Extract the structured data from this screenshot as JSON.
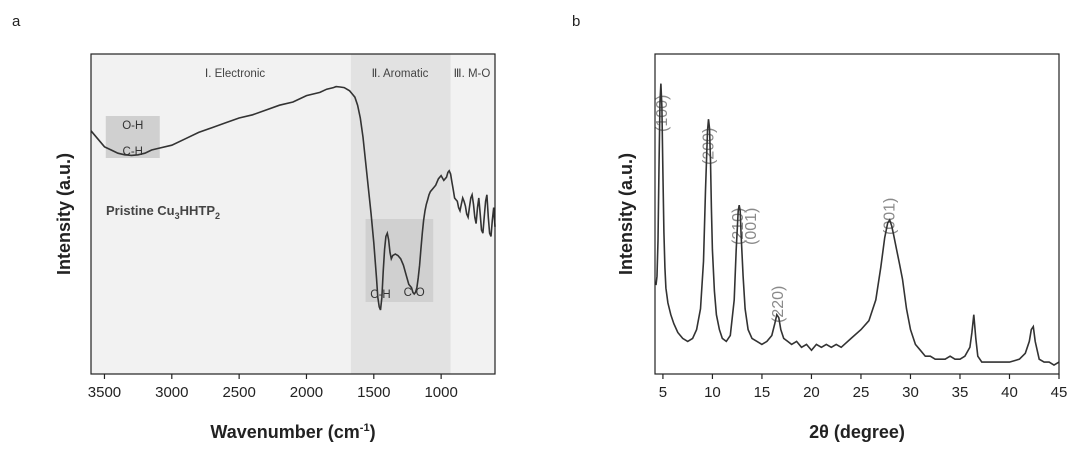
{
  "panels": {
    "a": "a",
    "b": "b"
  },
  "chart_data": [
    {
      "type": "line",
      "panel": "a",
      "xlabel": "Wavenumber (cm",
      "xlabel_sup": "-1",
      "xlabel_end": ")",
      "ylabel": "Intensity (a.u.)",
      "xlim": [
        3600,
        600
      ],
      "reversed_x": true,
      "y_ticks_shown": false,
      "x_ticks": [
        3500,
        3000,
        2500,
        2000,
        1500,
        1000
      ],
      "background_color": "#f2f2f2",
      "region_color": "#e2e2e2",
      "box_color": "#d0d0d0",
      "line_color": "#333333",
      "regions": [
        {
          "label": "Ⅰ. Electronic",
          "from": 3600,
          "to": 1670
        },
        {
          "label": "Ⅱ. Aromatic",
          "from": 1670,
          "to": 930
        },
        {
          "label": "Ⅲ. M-O",
          "from": 930,
          "to": 600
        }
      ],
      "band_labels": [
        {
          "label": "O-H",
          "x": 3290
        },
        {
          "label": "C-H",
          "x": 3290
        },
        {
          "label": "C-H",
          "x": 1450
        },
        {
          "label": "C-O",
          "x": 1200
        }
      ],
      "sample_label": {
        "text": "Pristine Cu",
        "sub1": "3",
        "mid": "HHTP",
        "sub2": "2"
      },
      "series": [
        {
          "x": [
            3600,
            3500,
            3450,
            3400,
            3350,
            3300,
            3250,
            3200,
            3150,
            3100,
            3000,
            2900,
            2800,
            2700,
            2600,
            2500,
            2400,
            2300,
            2200,
            2100,
            2000,
            1900,
            1850,
            1800,
            1780,
            1750,
            1720,
            1700,
            1680,
            1660,
            1640,
            1620,
            1600,
            1580,
            1560,
            1540,
            1520,
            1500,
            1480,
            1470,
            1460,
            1450,
            1440,
            1430,
            1420,
            1410,
            1400,
            1390,
            1380,
            1370,
            1360,
            1340,
            1320,
            1300,
            1280,
            1260,
            1240,
            1220,
            1210,
            1200,
            1190,
            1180,
            1170,
            1160,
            1150,
            1140,
            1130,
            1120,
            1110,
            1100,
            1090,
            1080,
            1060,
            1040,
            1020,
            1000,
            980,
            960,
            950,
            940,
            930,
            920,
            910,
            900,
            890,
            880,
            870,
            860,
            850,
            840,
            830,
            820,
            810,
            800,
            790,
            780,
            770,
            760,
            750,
            740,
            730,
            720,
            710,
            700,
            690,
            680,
            670,
            660,
            650,
            640,
            630,
            620,
            610,
            600
          ],
          "y": [
            0.76,
            0.71,
            0.7,
            0.69,
            0.685,
            0.683,
            0.685,
            0.69,
            0.7,
            0.705,
            0.715,
            0.735,
            0.755,
            0.77,
            0.785,
            0.8,
            0.81,
            0.825,
            0.84,
            0.85,
            0.87,
            0.88,
            0.89,
            0.895,
            0.898,
            0.897,
            0.895,
            0.89,
            0.885,
            0.875,
            0.865,
            0.84,
            0.8,
            0.74,
            0.66,
            0.58,
            0.5,
            0.41,
            0.3,
            0.24,
            0.21,
            0.2,
            0.24,
            0.32,
            0.39,
            0.43,
            0.44,
            0.42,
            0.38,
            0.36,
            0.37,
            0.375,
            0.37,
            0.36,
            0.34,
            0.31,
            0.28,
            0.27,
            0.255,
            0.25,
            0.255,
            0.27,
            0.3,
            0.34,
            0.39,
            0.44,
            0.48,
            0.51,
            0.53,
            0.545,
            0.56,
            0.57,
            0.58,
            0.59,
            0.61,
            0.62,
            0.605,
            0.615,
            0.63,
            0.635,
            0.625,
            0.6,
            0.575,
            0.55,
            0.545,
            0.54,
            0.52,
            0.51,
            0.53,
            0.55,
            0.54,
            0.525,
            0.5,
            0.49,
            0.52,
            0.55,
            0.56,
            0.53,
            0.49,
            0.47,
            0.52,
            0.55,
            0.5,
            0.45,
            0.44,
            0.49,
            0.54,
            0.56,
            0.49,
            0.44,
            0.43,
            0.48,
            0.52,
            0.46
          ],
          "ylim": [
            0,
            1
          ]
        }
      ]
    },
    {
      "type": "line",
      "panel": "b",
      "xlabel": "2θ (degree)",
      "ylabel": "Intensity (a.u.)",
      "xlim": [
        4.2,
        45
      ],
      "y_ticks_shown": false,
      "x_ticks": [
        5,
        10,
        15,
        20,
        25,
        30,
        35,
        40,
        45
      ],
      "line_color": "#333333",
      "peak_label_color": "#8a8a8a",
      "peak_labels": [
        {
          "label": "(100)",
          "x": 4.9
        },
        {
          "label": "(200)",
          "x": 9.6
        },
        {
          "label": "(210)",
          "x": 12.6
        },
        {
          "label": "(001)",
          "x": 13.9
        },
        {
          "label": "(220)",
          "x": 16.6
        },
        {
          "label": "(001)",
          "x": 27.9
        }
      ],
      "series": [
        {
          "x": [
            4.3,
            4.4,
            4.5,
            4.6,
            4.7,
            4.8,
            4.9,
            5.0,
            5.1,
            5.2,
            5.3,
            5.5,
            5.8,
            6.1,
            6.5,
            7.0,
            7.5,
            8.0,
            8.4,
            8.8,
            9.1,
            9.3,
            9.5,
            9.6,
            9.7,
            9.8,
            9.9,
            10.0,
            10.2,
            10.4,
            10.7,
            11.0,
            11.4,
            11.8,
            12.2,
            12.4,
            12.6,
            12.7,
            12.8,
            12.9,
            13.1,
            13.3,
            13.6,
            14.0,
            14.5,
            15.0,
            15.5,
            16.0,
            16.3,
            16.5,
            16.7,
            16.9,
            17.2,
            17.6,
            18.0,
            18.5,
            19.0,
            19.5,
            20.0,
            20.5,
            21.0,
            21.5,
            22.0,
            22.5,
            23.0,
            24.0,
            25.0,
            25.8,
            26.5,
            27.0,
            27.4,
            27.7,
            27.9,
            28.1,
            28.3,
            28.6,
            28.9,
            29.2,
            29.6,
            30.0,
            30.5,
            31.0,
            31.5,
            32.0,
            32.5,
            33.0,
            33.5,
            34.0,
            34.5,
            35.0,
            35.5,
            36.0,
            36.2,
            36.4,
            36.6,
            36.8,
            37.2,
            38.0,
            39.0,
            40.0,
            41.0,
            41.6,
            42.0,
            42.2,
            42.4,
            42.6,
            43.0,
            43.5,
            44.0,
            44.5,
            45.0
          ],
          "y": [
            0.3,
            0.33,
            0.45,
            0.7,
            0.92,
            0.98,
            0.9,
            0.68,
            0.48,
            0.36,
            0.29,
            0.24,
            0.2,
            0.17,
            0.14,
            0.12,
            0.11,
            0.12,
            0.15,
            0.22,
            0.38,
            0.62,
            0.82,
            0.86,
            0.83,
            0.72,
            0.56,
            0.42,
            0.28,
            0.2,
            0.15,
            0.12,
            0.11,
            0.13,
            0.25,
            0.42,
            0.55,
            0.57,
            0.55,
            0.47,
            0.33,
            0.22,
            0.15,
            0.12,
            0.11,
            0.1,
            0.11,
            0.13,
            0.17,
            0.2,
            0.19,
            0.15,
            0.12,
            0.11,
            0.1,
            0.11,
            0.09,
            0.1,
            0.08,
            0.1,
            0.09,
            0.1,
            0.09,
            0.1,
            0.09,
            0.12,
            0.15,
            0.18,
            0.25,
            0.36,
            0.46,
            0.51,
            0.52,
            0.5,
            0.47,
            0.42,
            0.37,
            0.32,
            0.22,
            0.15,
            0.1,
            0.08,
            0.06,
            0.06,
            0.05,
            0.05,
            0.05,
            0.06,
            0.05,
            0.05,
            0.06,
            0.09,
            0.14,
            0.2,
            0.12,
            0.06,
            0.04,
            0.04,
            0.04,
            0.04,
            0.05,
            0.07,
            0.11,
            0.15,
            0.16,
            0.11,
            0.05,
            0.04,
            0.04,
            0.03,
            0.04
          ],
          "ylim": [
            0,
            1.08
          ]
        }
      ]
    }
  ]
}
